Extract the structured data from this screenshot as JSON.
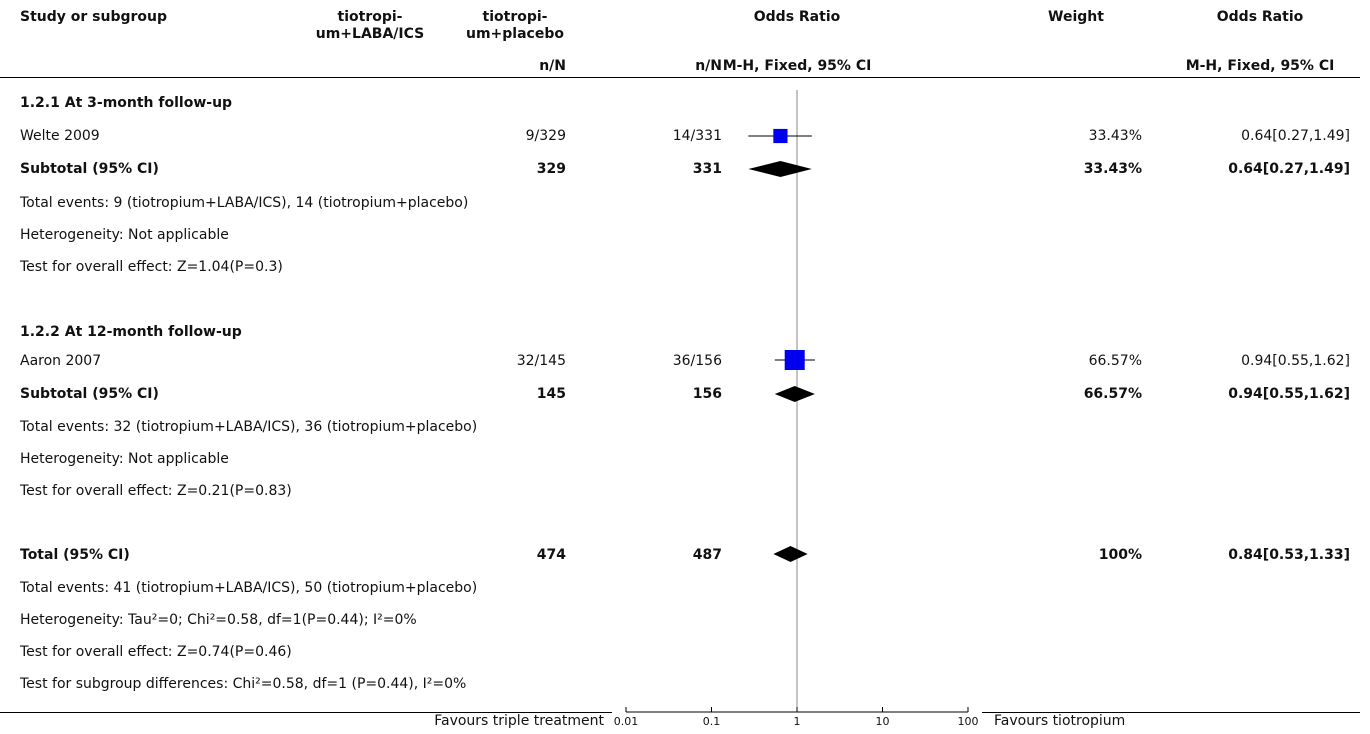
{
  "header": {
    "study_col": "Study or subgroup",
    "exp_col": [
      "tiotropi-",
      "um+LABA/ICS"
    ],
    "ctl_col": [
      "tiotropi-",
      "um+placebo"
    ],
    "or_col": "Odds Ratio",
    "weight_col": "Weight",
    "or_col2": "Odds Ratio",
    "exp_sub": "n/N",
    "ctl_sub": "n/N",
    "method": "M-H, Fixed, 95% CI",
    "method2": "M-H, Fixed, 95% CI"
  },
  "groups": [
    {
      "title": "1.2.1 At 3-month follow-up",
      "study": {
        "name": "Welte 2009",
        "exp": "9/329",
        "ctl": "14/331",
        "weight": "33.43%",
        "ci_text": "0.64[0.27,1.49]"
      },
      "subtotal": {
        "label": "Subtotal (95% CI)",
        "exp": "329",
        "ctl": "331",
        "weight": "33.43%",
        "ci_text": "0.64[0.27,1.49]"
      },
      "notes": [
        "Total events: 9 (tiotropium+LABA/ICS), 14 (tiotropium+placebo)",
        "Heterogeneity: Not applicable",
        "Test for overall effect: Z=1.04(P=0.3)"
      ]
    },
    {
      "title": "1.2.2 At 12-month follow-up",
      "study": {
        "name": "Aaron 2007",
        "exp": "32/145",
        "ctl": "36/156",
        "weight": "66.57%",
        "ci_text": "0.94[0.55,1.62]"
      },
      "subtotal": {
        "label": "Subtotal (95% CI)",
        "exp": "145",
        "ctl": "156",
        "weight": "66.57%",
        "ci_text": "0.94[0.55,1.62]"
      },
      "notes": [
        "Total events: 32 (tiotropium+LABA/ICS), 36 (tiotropium+placebo)",
        "Heterogeneity: Not applicable",
        "Test for overall effect: Z=0.21(P=0.83)"
      ]
    }
  ],
  "total": {
    "label": "Total (95% CI)",
    "exp": "474",
    "ctl": "487",
    "weight": "100%",
    "ci_text": "0.84[0.53,1.33]",
    "notes": [
      "Total events: 41 (tiotropium+LABA/ICS), 50 (tiotropium+placebo)",
      "Heterogeneity: Tau²=0; Chi²=0.58, df=1(P=0.44); I²=0%",
      "Test for overall effect: Z=0.74(P=0.46)",
      "Test for subgroup differences: Chi²=0.58, df=1 (P=0.44), I²=0%"
    ]
  },
  "footer": {
    "left": "Favours triple treatment",
    "right": "Favours tiotropium"
  },
  "chart_data": {
    "type": "forest",
    "x_scale": "log",
    "xlim": [
      0.01,
      100
    ],
    "x_ticks": [
      "0.01",
      "0.1",
      "1",
      "10",
      "100"
    ],
    "tick_values": [
      0.01,
      0.1,
      1,
      10,
      100
    ],
    "studies": [
      {
        "name": "Welte 2009",
        "or": 0.64,
        "lo": 0.27,
        "hi": 1.49,
        "weight": 33.43
      },
      {
        "name": "Aaron 2007",
        "or": 0.94,
        "lo": 0.55,
        "hi": 1.62,
        "weight": 66.57
      }
    ],
    "diamonds": [
      {
        "name": "Subtotal 1.2.1",
        "or": 0.64,
        "lo": 0.27,
        "hi": 1.49
      },
      {
        "name": "Subtotal 1.2.2",
        "or": 0.94,
        "lo": 0.55,
        "hi": 1.62
      },
      {
        "name": "Total",
        "or": 0.84,
        "lo": 0.53,
        "hi": 1.33
      }
    ],
    "colors": {
      "study_box": "#0000ee",
      "diamond": "#000000"
    }
  }
}
